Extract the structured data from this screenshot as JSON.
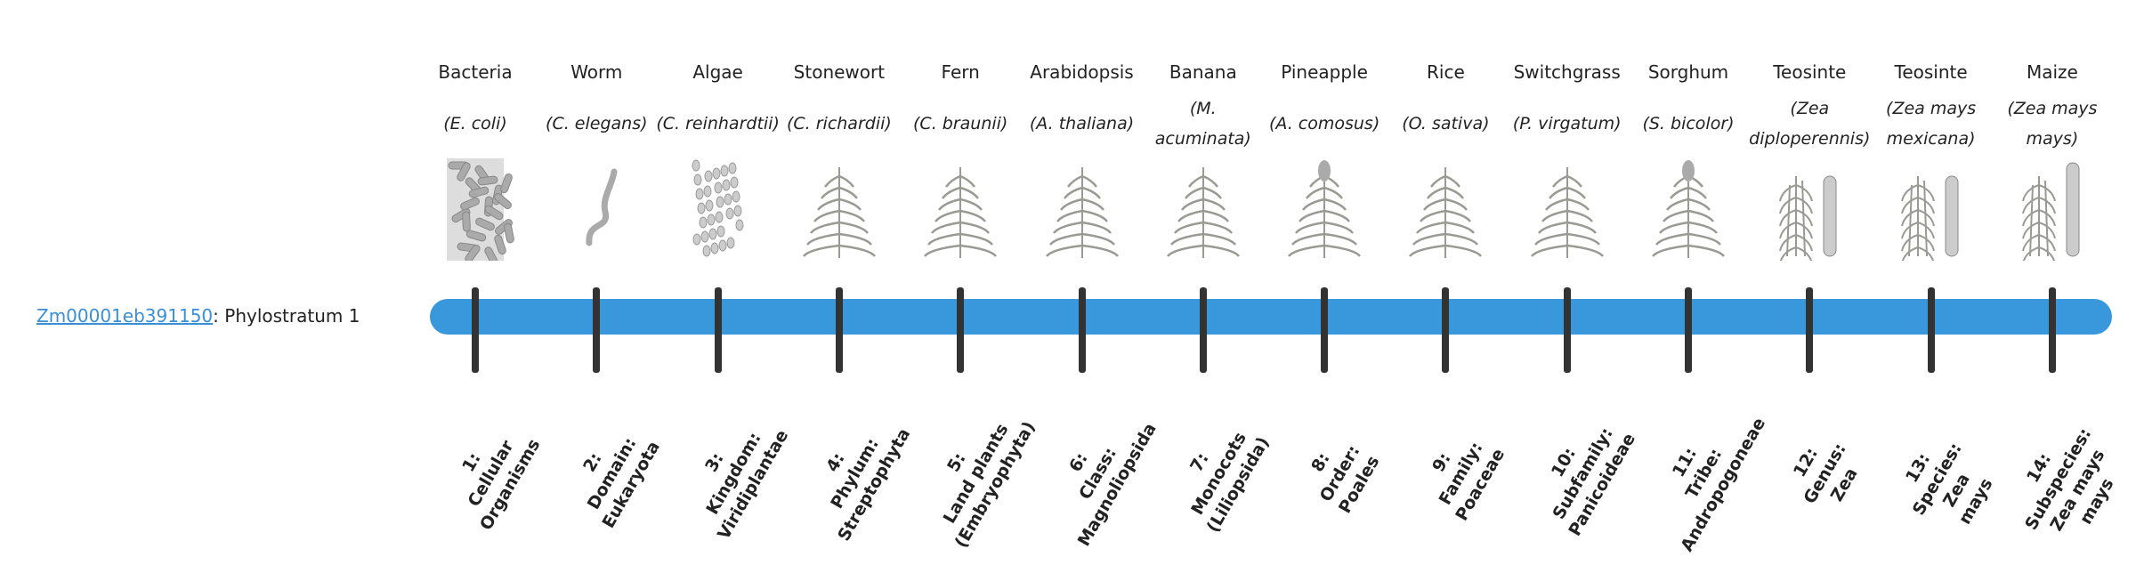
{
  "gene": {
    "id": "Zm00001eb391150",
    "suffix": ": Phylostratum 1"
  },
  "colors": {
    "bar": "#3898db",
    "tick": "#333333",
    "link": "#3a8fd6"
  },
  "strata": [
    {
      "common": "Bacteria",
      "scientific": "(E. coli)",
      "icon": "bacteria-icon",
      "label": [
        "1:",
        "Cellular",
        "Organisms"
      ]
    },
    {
      "common": "Worm",
      "scientific": "(C. elegans)",
      "icon": "worm-icon",
      "label": [
        "2:",
        "Domain:",
        "Eukaryota"
      ]
    },
    {
      "common": "Algae",
      "scientific": "(C. reinhardtii)",
      "icon": "algae-icon",
      "label": [
        "3:",
        "Kingdom:",
        "Viridiplantae"
      ]
    },
    {
      "common": "Stonewort",
      "scientific": "(C. richardii)",
      "icon": "stonewort-icon",
      "label": [
        "4:",
        "Phylum:",
        "Streptophyta"
      ]
    },
    {
      "common": "Fern",
      "scientific": "(C. braunii)",
      "icon": "fern-icon",
      "label": [
        "5:",
        "Land plants",
        "(Embryophyta)"
      ]
    },
    {
      "common": "Arabidopsis",
      "scientific": "(A. thaliana)",
      "icon": "arabidopsis-icon",
      "label": [
        "6:",
        "Class:",
        "Magnoliopsida"
      ]
    },
    {
      "common": "Banana",
      "scientific": "(M. acuminata)",
      "icon": "banana-icon",
      "label": [
        "7:",
        "Monocots",
        "(Liliopsida)"
      ]
    },
    {
      "common": "Pineapple",
      "scientific": "(A. comosus)",
      "icon": "pineapple-icon",
      "label": [
        "8:",
        "Order:",
        "Poales"
      ]
    },
    {
      "common": "Rice",
      "scientific": "(O. sativa)",
      "icon": "rice-icon",
      "label": [
        "9:",
        "Family:",
        "Poaceae"
      ]
    },
    {
      "common": "Switchgrass",
      "scientific": "(P. virgatum)",
      "icon": "switchgrass-icon",
      "label": [
        "10:",
        "Subfamily:",
        "Panicoideae"
      ]
    },
    {
      "common": "Sorghum",
      "scientific": "(S. bicolor)",
      "icon": "sorghum-icon",
      "label": [
        "11:",
        "Tribe:",
        "Andropogoneae"
      ]
    },
    {
      "common": "Teosinte",
      "scientific": "(Zea diploperennis)",
      "icon": "teosinte-icon",
      "label": [
        "12:",
        "Genus:",
        "Zea"
      ]
    },
    {
      "common": "Teosinte",
      "scientific": "(Zea mays mexicana)",
      "icon": "teosinte-icon",
      "label": [
        "13:",
        "Species:",
        "Zea",
        "mays"
      ]
    },
    {
      "common": "Maize",
      "scientific": "(Zea mays mays)",
      "icon": "maize-icon",
      "label": [
        "14:",
        "Subspecies:",
        "Zea mays",
        "mays"
      ]
    }
  ]
}
